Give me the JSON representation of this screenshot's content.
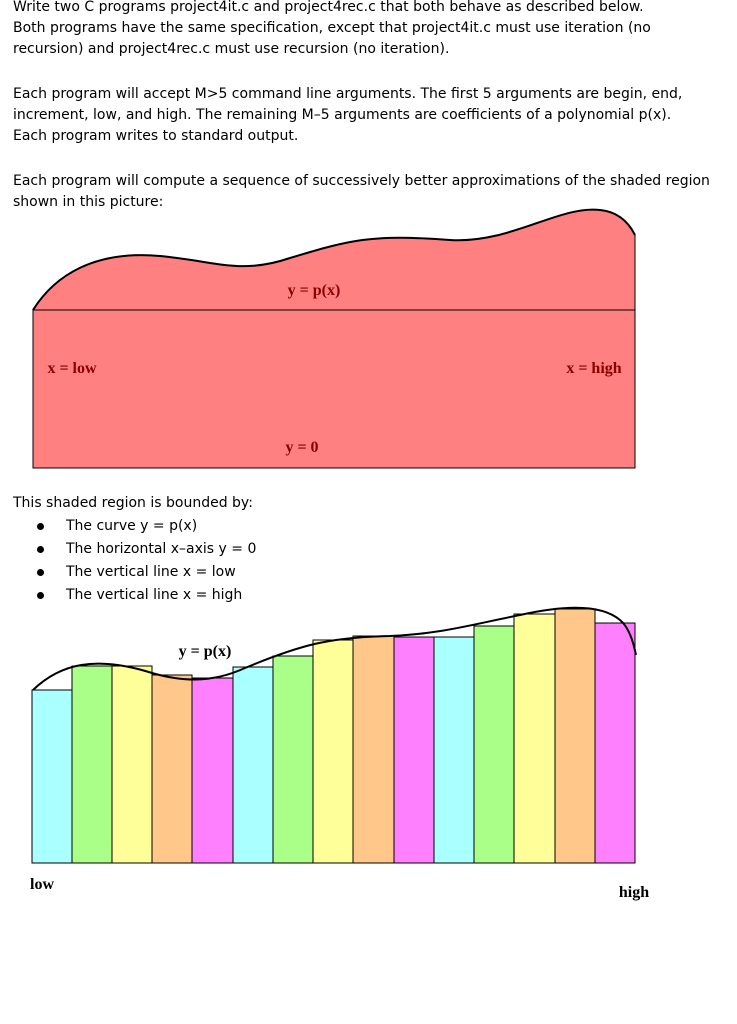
{
  "intro": {
    "lines": [
      "Write two C programs project4it.c and project4rec.c that both behave as described below.",
      "Both programs have the same specification, except that project4it.c must use iteration (no",
      "recursion) and project4rec.c must use recursion (no iteration)."
    ]
  },
  "args": {
    "lines": [
      "Each program will accept M>5 command line arguments.  The first 5 arguments are begin, end,",
      "increment, low, and high.  The remaining M–5 arguments are coefficients of a polynomial p(x).",
      "Each program writes to standard output."
    ]
  },
  "compute": {
    "lines": [
      "Each program will compute a sequence of successively better approximations of the shaded region",
      "shown in this picture:"
    ]
  },
  "region_figure": {
    "fill_color": "#ff8080",
    "label_curve": "y = p(x)",
    "label_low": "x = low",
    "label_high": "x = high",
    "label_axis": "y = 0",
    "label_color": "#8b0000"
  },
  "bounds": {
    "intro": "This shaded region is bounded by:",
    "items": [
      "The curve y = p(x)",
      "The horizontal x–axis y = 0",
      "The vertical line x = low",
      "The vertical line x = high"
    ]
  },
  "riemann_figure": {
    "label_curve": "y = p(x)",
    "label_low": "low",
    "label_high": "high",
    "bar_colors": [
      "#aaffff",
      "#aaff88",
      "#ffff99",
      "#ffc78a",
      "#ff80ff",
      "#aaffff",
      "#aaff88",
      "#ffff99",
      "#ffc78a",
      "#ff80ff",
      "#aaffff",
      "#aaff88",
      "#ffff99",
      "#ffc78a",
      "#ff80ff"
    ]
  }
}
